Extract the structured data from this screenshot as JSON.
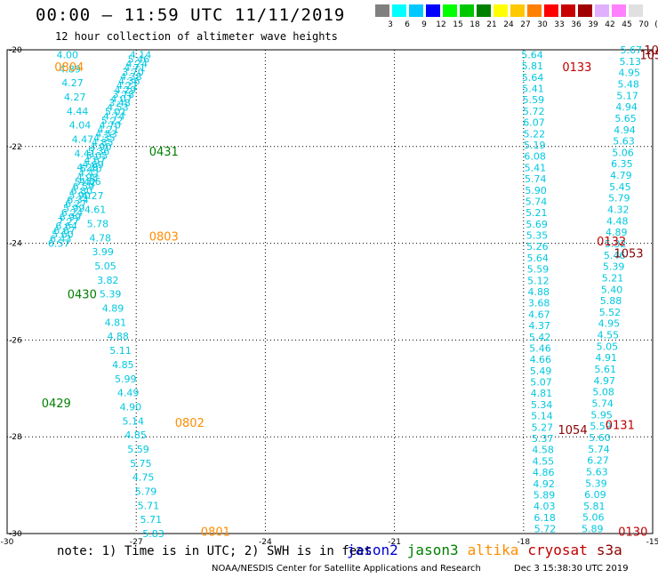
{
  "header": {
    "title": "00:00 – 11:59 UTC 11/11/2019",
    "subtitle": "12 hour collection of altimeter wave heights"
  },
  "scale": {
    "labels": [
      "3",
      "6",
      "9",
      "12",
      "15",
      "18",
      "21",
      "24",
      "27",
      "30",
      "33",
      "36",
      "39",
      "42",
      "45",
      "70",
      "(ft)"
    ],
    "colors": [
      "#808080",
      "#00ffff",
      "#00c8ff",
      "#0000ff",
      "#00ff00",
      "#00c800",
      "#008000",
      "#ffff00",
      "#ffc800",
      "#ff8000",
      "#ff0000",
      "#c80000",
      "#a00000",
      "#e0b0ff",
      "#ff80ff",
      "#e0e0e0"
    ]
  },
  "footer": {
    "note": "note: 1) Time is in UTC; 2) SWH is in feet",
    "credit": "NOAA/NESDIS Center for Satellite Applications and Research",
    "timestamp": "Dec  3 15:38:30 UTC 2019"
  },
  "satellites": [
    {
      "name": "jason2",
      "color": "#0000d0"
    },
    {
      "name": "jason3",
      "color": "#008000"
    },
    {
      "name": "altika",
      "color": "#ff8c00"
    },
    {
      "name": "cryosat",
      "color": "#c00000"
    },
    {
      "name": "s3a",
      "color": "#8b0000"
    }
  ],
  "chart_data": {
    "type": "scatter",
    "title": "12 hour collection of altimeter wave heights",
    "xlim": [
      -30,
      -15
    ],
    "ylim": [
      -30,
      -20
    ],
    "x_ticks": [
      "-30",
      "-27",
      "-24",
      "-21",
      "-18",
      "-15"
    ],
    "y_ticks": [
      "-20",
      "-22",
      "-24",
      "-26",
      "-28",
      "-30"
    ],
    "grid": true,
    "value_color": "#00c8e0",
    "passes": [
      {
        "label": "0804",
        "color": "#ff8c00",
        "label_pos": [
          -28.9,
          -20.35
        ],
        "start": [
          -28.6,
          -20.1
        ],
        "end": [
          -26.6,
          -30
        ],
        "values": [
          "4.00",
          "4.89",
          "4.27",
          "4.27",
          "4.44",
          "4.04",
          "4.47",
          "4.41",
          "4.26",
          "4.66",
          "4.27",
          "4.61",
          "5.78",
          "4.78",
          "3.99",
          "5.05",
          "3.82",
          "5.39",
          "4.89",
          "4.81",
          "4.88",
          "5.11",
          "4.85",
          "5.99",
          "4.49",
          "4.90",
          "5.14",
          "4.85",
          "5.59",
          "5.75",
          "4.75",
          "5.79",
          "5.71",
          "5.71",
          "5.83"
        ]
      },
      {
        "label": "0431",
        "color": "#008000",
        "label_pos": [
          -26.7,
          -22.1
        ],
        "start": [
          -27.0,
          -20.1
        ],
        "end": [
          -29.3,
          -26.0
        ],
        "values": []
      },
      {
        "label": "0803",
        "color": "#ff8c00",
        "label_pos": [
          -26.7,
          -23.85
        ],
        "start": [
          -26.9,
          -20.1
        ],
        "end": [
          -28.8,
          -24.0
        ],
        "values": [
          "4.14",
          "5.46",
          "4.24",
          "4.71",
          "3.70",
          "4.38",
          "4.36",
          "4.21",
          "4.29",
          "3.78",
          "4.07",
          "3.48",
          "4.53",
          "5.01",
          "4.74",
          "5.22",
          "4.70",
          "4.21",
          "4.53",
          "4.35",
          "4.85",
          "4.90",
          "5.36",
          "5.05",
          "4.67",
          "4.69",
          "5.40",
          "4.41",
          "4.98",
          "5.42",
          "6.59",
          "6.80",
          "5.90",
          "6.34",
          "6.27",
          "5.99",
          "6.24",
          "6.99",
          "7.27",
          "6.64",
          "6.67",
          "5.60",
          "6.43",
          "6.57"
        ]
      },
      {
        "label": "0430",
        "color": "#008000",
        "label_pos": [
          -28.6,
          -25.05
        ],
        "start": [
          -28.0,
          -24.5
        ],
        "end": [
          -29.8,
          -27.9
        ],
        "values": []
      },
      {
        "label": "0429",
        "color": "#008000",
        "label_pos": [
          -29.2,
          -27.3
        ],
        "start": [
          -29.6,
          -26.5
        ],
        "end": [
          -29.9,
          -28.0
        ],
        "values": []
      },
      {
        "label": "0802",
        "color": "#ff8c00",
        "label_pos": [
          -26.1,
          -27.7
        ],
        "start": [
          -26.6,
          -27.0
        ],
        "end": [
          -26.4,
          -28.5
        ],
        "values": []
      },
      {
        "label": "0801",
        "color": "#ff8c00",
        "label_pos": [
          -25.5,
          -29.95
        ],
        "start": [
          -26.0,
          -29.5
        ],
        "end": [
          -25.8,
          -30.0
        ],
        "values": []
      },
      {
        "label": "0133",
        "color": "#c00000",
        "label_pos": [
          -17.1,
          -20.35
        ],
        "start": [
          -17.8,
          -20.1
        ],
        "end": [
          -17.5,
          -29.9
        ],
        "values": [
          "5.64",
          "5.81",
          "5.64",
          "5.41",
          "5.59",
          "5.72",
          "6.07",
          "5.22",
          "5.19",
          "6.08",
          "5.41",
          "5.74",
          "5.90",
          "5.74",
          "5.21",
          "5.69",
          "5.35",
          "5.26",
          "5.64",
          "5.59",
          "5.12",
          "4.88",
          "3.68",
          "4.67",
          "4.37",
          "5.42",
          "5.46",
          "4.66",
          "5.49",
          "5.07",
          "4.81",
          "5.34",
          "5.14",
          "5.27",
          "5.37",
          "4.58",
          "4.55",
          "4.86",
          "4.92",
          "5.89",
          "4.03",
          "6.18",
          "5.72"
        ]
      },
      {
        "label": "1053",
        "color": "#8b0000",
        "label_pos": [
          -15.2,
          -20.0
        ],
        "start": [
          -15.5,
          -20.0
        ],
        "end": [
          -16.4,
          -29.9
        ],
        "values": [
          "5.67",
          "5.13",
          "4.95",
          "5.48",
          "5.17",
          "4.94",
          "5.65",
          "4.94",
          "5.63",
          "5.06",
          "6.35",
          "4.79",
          "5.45",
          "5.79",
          "4.32",
          "4.48",
          "4.89",
          "5.32",
          "5.46",
          "5.39",
          "5.21",
          "5.40",
          "5.88",
          "5.52",
          "4.95",
          "4.55",
          "5.05",
          "4.91",
          "5.61",
          "4.97",
          "5.08",
          "5.74",
          "5.95",
          "5.59",
          "5.60",
          "5.74",
          "6.27",
          "5.63",
          "5.39",
          "6.09",
          "5.81",
          "5.06",
          "5.89"
        ]
      },
      {
        "label": "1053",
        "color": "#8b0000",
        "label_pos": [
          -14.9,
          -20.7
        ],
        "start": [
          -15.0,
          -20.7
        ],
        "end": [
          -15.0,
          -20.7
        ],
        "values": []
      },
      {
        "label": "0132",
        "color": "#c00000",
        "label_pos": [
          -16.3,
          -23.95
        ],
        "start": [
          -16.3,
          -24.0
        ],
        "end": [
          -16.3,
          -24.0
        ],
        "values": []
      },
      {
        "label": "1053",
        "color": "#8b0000",
        "label_pos": [
          -15.9,
          -24.2
        ],
        "start": [
          -15.9,
          -24.2
        ],
        "end": [
          -15.9,
          -24.2
        ],
        "values": []
      },
      {
        "label": "1054",
        "color": "#8b0000",
        "label_pos": [
          -17.2,
          -27.85
        ],
        "start": [
          -17.2,
          -27.85
        ],
        "end": [
          -17.2,
          -27.85
        ],
        "values": []
      },
      {
        "label": "0131",
        "color": "#c00000",
        "label_pos": [
          -16.1,
          -27.75
        ],
        "start": [
          -16.1,
          -27.75
        ],
        "end": [
          -16.1,
          -27.75
        ],
        "values": []
      },
      {
        "label": "0130",
        "color": "#c00000",
        "label_pos": [
          -15.8,
          -29.95
        ],
        "start": [
          -15.8,
          -29.95
        ],
        "end": [
          -15.8,
          -29.95
        ],
        "values": []
      },
      {
        "label": "1053",
        "color": "#8b0000",
        "label_pos": [
          -15.3,
          -20.1
        ],
        "start": [
          -15.3,
          -20.1
        ],
        "end": [
          -15.3,
          -20.1
        ],
        "values": []
      }
    ]
  }
}
